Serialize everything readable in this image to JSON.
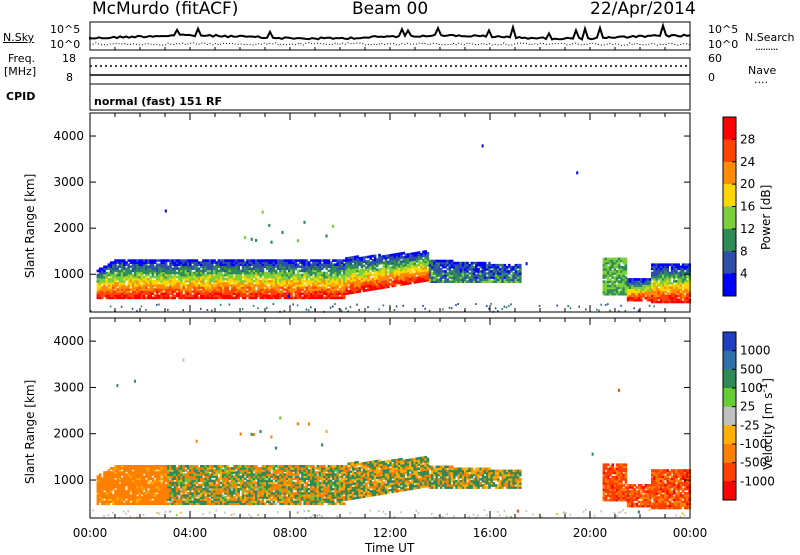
{
  "header": {
    "station": "McMurdo (fitACF)",
    "beam": "Beam 00",
    "date": "22/Apr/2014"
  },
  "aux_panels": {
    "nsky_label": "N.Sky",
    "nsky_ticks": [
      "10^5",
      "10^0"
    ],
    "nsearch_label": "N.Search",
    "nsearch_ticks": [
      "10^5",
      "10^0"
    ],
    "freq_label_1": "Freq.",
    "freq_label_2": "[MHz]",
    "freq_ticks": [
      "18",
      "8"
    ],
    "nave_label": "Nave",
    "nave_ticks": [
      "60",
      "0"
    ],
    "cpid_label": "CPID",
    "cpid_value": "normal (fast) 151 RF"
  },
  "chart_data": [
    {
      "type": "heatmap",
      "title": "",
      "ylabel": "Slant Range [km]",
      "xlabel": "",
      "x_ticks": [
        "00:00",
        "04:00",
        "08:00",
        "12:00",
        "16:00",
        "20:00",
        "00:00"
      ],
      "y_ticks": [
        1000,
        2000,
        3000,
        4000
      ],
      "ylim": [
        180,
        4500
      ],
      "colorbar": {
        "label": "Power [dB]",
        "ticks": [
          4,
          8,
          12,
          16,
          20,
          24,
          28
        ],
        "range": [
          0,
          32
        ],
        "colors": [
          "#0000ff",
          "#2e4ea8",
          "#2e8b57",
          "#7ccf3a",
          "#ffd700",
          "#ff8c00",
          "#ff4500",
          "#ff0000"
        ]
      }
    },
    {
      "type": "heatmap",
      "title": "",
      "ylabel": "Slant Range [km]",
      "xlabel": "Time UT",
      "x_ticks": [
        "00:00",
        "04:00",
        "08:00",
        "12:00",
        "16:00",
        "20:00",
        "00:00"
      ],
      "y_ticks": [
        1000,
        2000,
        3000,
        4000
      ],
      "ylim": [
        180,
        4500
      ],
      "colorbar": {
        "label": "Velocity [m s^-1]",
        "ticks": [
          1000,
          500,
          100,
          25,
          -25,
          -100,
          -500,
          -1000
        ],
        "range": [
          -1200,
          1200
        ],
        "colors": [
          "#1f3fbf",
          "#2e6fa8",
          "#2e8b57",
          "#66cc33",
          "#c0c0c0",
          "#ffb000",
          "#ff8000",
          "#ff4000",
          "#ff0000"
        ]
      }
    }
  ]
}
